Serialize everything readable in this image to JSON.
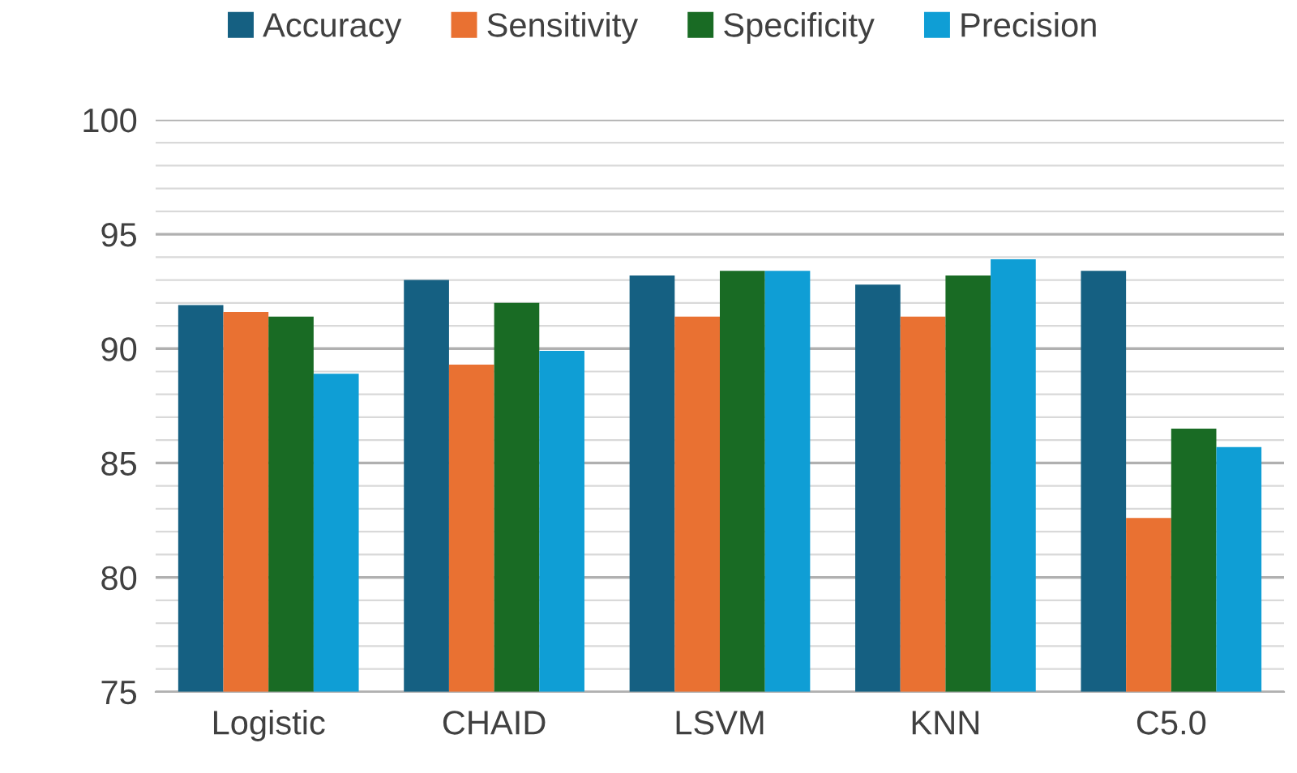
{
  "chart_data": {
    "type": "bar",
    "categories": [
      "Logistic",
      "CHAID",
      "LSVM",
      "KNN",
      "C5.0"
    ],
    "series": [
      {
        "name": "Accuracy",
        "color": "#156082",
        "values": [
          91.9,
          93.0,
          93.2,
          92.8,
          93.4
        ]
      },
      {
        "name": "Sensitivity",
        "color": "#e97132",
        "values": [
          91.6,
          89.3,
          91.4,
          91.4,
          82.6
        ]
      },
      {
        "name": "Specificity",
        "color": "#196b24",
        "values": [
          91.4,
          92.0,
          93.4,
          93.2,
          86.5
        ]
      },
      {
        "name": "Precision",
        "color": "#0f9ed5",
        "values": [
          88.9,
          89.9,
          93.4,
          93.9,
          85.7
        ]
      }
    ],
    "ylim": [
      75,
      100
    ],
    "yticks": [
      75,
      80,
      85,
      90,
      95,
      100
    ],
    "grid": "y",
    "legend": "top"
  }
}
